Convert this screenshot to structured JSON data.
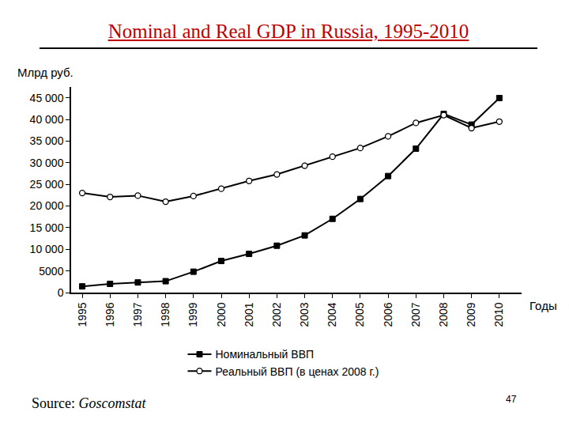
{
  "chart_data": {
    "type": "line",
    "title": "Nominal and Real GDP in Russia, 1995-2010",
    "y_label": "Млрд руб.",
    "x_label": "Годы",
    "source_label": "Source:",
    "source_name": "Goscomstat",
    "page_number": 47,
    "x": [
      1995,
      1996,
      1997,
      1998,
      1999,
      2000,
      2001,
      2002,
      2003,
      2004,
      2005,
      2006,
      2007,
      2008,
      2009,
      2010
    ],
    "series": [
      {
        "name": "Номинальный ВВП",
        "color": "#000000",
        "marker": "square",
        "values": [
          1430,
          2010,
          2340,
          2630,
          4820,
          7300,
          8940,
          10830,
          13210,
          17030,
          21620,
          26920,
          33250,
          41280,
          38810,
          44940
        ]
      },
      {
        "name": "Реальный ВВП (в ценах 2008 г.)",
        "color": "#000000",
        "marker": "circle-open",
        "values": [
          23000,
          22100,
          22400,
          21000,
          22300,
          24000,
          25800,
          27300,
          29300,
          31400,
          33400,
          36100,
          39200,
          41000,
          38000,
          39500
        ]
      }
    ],
    "xlim": [
      1994.6,
      2010.8
    ],
    "xticks": [
      1995,
      1996,
      1997,
      1998,
      1999,
      2000,
      2001,
      2002,
      2003,
      2004,
      2005,
      2006,
      2007,
      2008,
      2009,
      2010
    ],
    "ylim": [
      0,
      47500
    ],
    "yticks": [
      0,
      5000,
      {
        "value": 10000,
        "label": "10 000"
      },
      {
        "value": 15000,
        "label": "15 000"
      },
      {
        "value": 20000,
        "label": "20 000"
      },
      {
        "value": 25000,
        "label": "25 000"
      },
      {
        "value": 30000,
        "label": "30 000"
      },
      {
        "value": 35000,
        "label": "35 000"
      },
      {
        "value": 40000,
        "label": "40 000"
      },
      {
        "value": 45000,
        "label": "45 000"
      }
    ],
    "grid": false,
    "legend": "bottom"
  }
}
